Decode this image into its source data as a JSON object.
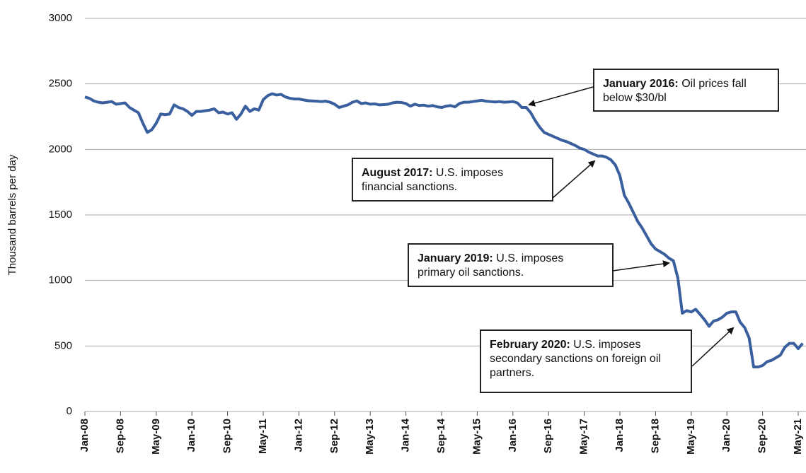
{
  "chart_data": {
    "type": "line",
    "y_label": "Thousand barrels per day",
    "color": "#3a5f9e",
    "grid": true,
    "ylim": [
      0,
      3000
    ],
    "yticks": [
      0,
      500,
      1000,
      1500,
      2000,
      2500,
      3000
    ],
    "categories": [
      "Jan-08",
      null,
      null,
      null,
      null,
      null,
      null,
      null,
      "Sep-08",
      null,
      null,
      null,
      null,
      null,
      null,
      null,
      "May-09",
      null,
      null,
      null,
      null,
      null,
      null,
      null,
      "Jan-10",
      null,
      null,
      null,
      null,
      null,
      null,
      null,
      "Sep-10",
      null,
      null,
      null,
      null,
      null,
      null,
      null,
      "May-11",
      null,
      null,
      null,
      null,
      null,
      null,
      null,
      "Jan-12",
      null,
      null,
      null,
      null,
      null,
      null,
      null,
      "Sep-12",
      null,
      null,
      null,
      null,
      null,
      null,
      null,
      "May-13",
      null,
      null,
      null,
      null,
      null,
      null,
      null,
      "Jan-14",
      null,
      null,
      null,
      null,
      null,
      null,
      null,
      "Sep-14",
      null,
      null,
      null,
      null,
      null,
      null,
      null,
      "May-15",
      null,
      null,
      null,
      null,
      null,
      null,
      null,
      "Jan-16",
      null,
      null,
      null,
      null,
      null,
      null,
      null,
      "Sep-16",
      null,
      null,
      null,
      null,
      null,
      null,
      null,
      "May-17",
      null,
      null,
      null,
      null,
      null,
      null,
      null,
      "Jan-18",
      null,
      null,
      null,
      null,
      null,
      null,
      null,
      "Sep-18",
      null,
      null,
      null,
      null,
      null,
      null,
      null,
      "May-19",
      null,
      null,
      null,
      null,
      null,
      null,
      null,
      "Jan-20",
      null,
      null,
      null,
      null,
      null,
      null,
      null,
      "Sep-20",
      null,
      null,
      null,
      null,
      null,
      null,
      null,
      "May-21",
      null
    ],
    "values": [
      2400,
      2390,
      2370,
      2360,
      2355,
      2360,
      2365,
      2345,
      2350,
      2355,
      2320,
      2300,
      2280,
      2200,
      2130,
      2150,
      2200,
      2270,
      2265,
      2270,
      2340,
      2320,
      2310,
      2290,
      2260,
      2290,
      2290,
      2295,
      2300,
      2310,
      2280,
      2285,
      2270,
      2280,
      2230,
      2270,
      2330,
      2290,
      2310,
      2300,
      2380,
      2410,
      2425,
      2415,
      2420,
      2400,
      2390,
      2385,
      2385,
      2378,
      2372,
      2370,
      2368,
      2365,
      2368,
      2360,
      2345,
      2320,
      2330,
      2340,
      2360,
      2370,
      2350,
      2355,
      2345,
      2348,
      2340,
      2342,
      2345,
      2355,
      2360,
      2358,
      2350,
      2330,
      2345,
      2335,
      2338,
      2330,
      2335,
      2325,
      2320,
      2330,
      2335,
      2325,
      2350,
      2360,
      2360,
      2365,
      2370,
      2375,
      2368,
      2365,
      2362,
      2365,
      2360,
      2362,
      2365,
      2355,
      2320,
      2320,
      2280,
      2220,
      2170,
      2130,
      2115,
      2100,
      2085,
      2070,
      2060,
      2045,
      2030,
      2010,
      2000,
      1980,
      1965,
      1950,
      1950,
      1940,
      1920,
      1880,
      1800,
      1650,
      1590,
      1520,
      1450,
      1400,
      1340,
      1280,
      1240,
      1220,
      1200,
      1170,
      1150,
      1020,
      750,
      770,
      760,
      780,
      740,
      700,
      650,
      690,
      700,
      720,
      750,
      760,
      760,
      680,
      640,
      560,
      340,
      340,
      350,
      380,
      390,
      410,
      430,
      490,
      520,
      520,
      480,
      520
    ],
    "annotations": [
      {
        "bold": "January 2016:",
        "text": "Oil prices fall below $30/bl"
      },
      {
        "bold": "August 2017:",
        "text": "U.S. imposes financial sanctions."
      },
      {
        "bold": "January 2019:",
        "text": "U.S. imposes primary oil sanctions."
      },
      {
        "bold": "February 2020:",
        "text": "U.S. imposes secondary sanctions on foreign oil partners."
      }
    ]
  }
}
